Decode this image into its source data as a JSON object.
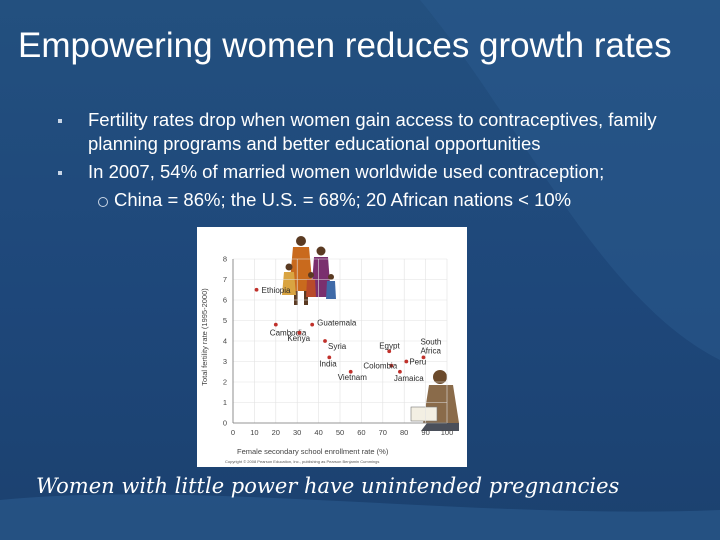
{
  "slide": {
    "title": "Empowering women reduces growth rates",
    "bullets": [
      "Fertility rates drop when women gain access to contraceptives, family planning programs and better educational opportunities",
      "In 2007, 54% of married women worldwide used contraception;"
    ],
    "sub_bullet": "China  = 86%;  the U.S. =  68%; 20 African nations < 10%",
    "caption": "Women with little power have unintended pregnancies"
  },
  "colors": {
    "background": "#1f497d",
    "point": "#c0312b",
    "text": "#ffffff"
  },
  "chart_data": {
    "type": "scatter",
    "xlabel": "Female secondary school enrollment rate (%)",
    "ylabel": "Total fertility rate (1995-2000)",
    "xlim": [
      0,
      100
    ],
    "ylim": [
      0,
      8
    ],
    "xticks": [
      0,
      10,
      20,
      30,
      40,
      50,
      60,
      70,
      80,
      90,
      100
    ],
    "yticks": [
      0,
      1,
      2,
      3,
      4,
      5,
      6,
      7,
      8
    ],
    "points": [
      {
        "label": "Ethiopia",
        "x": 11,
        "y": 6.5
      },
      {
        "label": "Cambodia",
        "x": 20,
        "y": 4.8
      },
      {
        "label": "Guatemala",
        "x": 37,
        "y": 4.8
      },
      {
        "label": "Kenya",
        "x": 31,
        "y": 4.4
      },
      {
        "label": "Syria",
        "x": 43,
        "y": 4.0
      },
      {
        "label": "India",
        "x": 45,
        "y": 3.2
      },
      {
        "label": "Egypt",
        "x": 73,
        "y": 3.5
      },
      {
        "label": "South Africa",
        "x": 89,
        "y": 3.2
      },
      {
        "label": "Peru",
        "x": 81,
        "y": 3.0
      },
      {
        "label": "Colombia",
        "x": 74,
        "y": 2.8
      },
      {
        "label": "Vietnam",
        "x": 55,
        "y": 2.5
      },
      {
        "label": "Jamaica",
        "x": 78,
        "y": 2.5
      }
    ],
    "credit": "Copyright © 2008 Pearson Education, Inc., publishing as Pearson Benjamin Cummings"
  }
}
